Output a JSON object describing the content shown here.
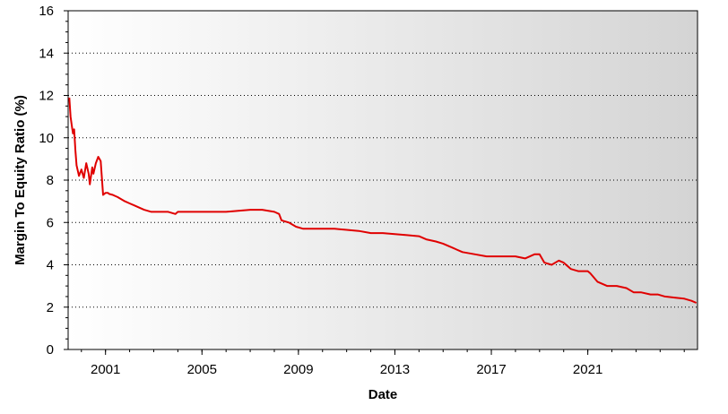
{
  "chart_data": {
    "type": "line",
    "title": "",
    "xlabel": "Date",
    "ylabel": "Margin To Equity Ratio (%)",
    "xlim": [
      1999.45,
      2025.55
    ],
    "ylim": [
      0,
      16
    ],
    "x_ticks": [
      2001,
      2005,
      2009,
      2013,
      2017,
      2021
    ],
    "y_ticks": [
      0,
      2,
      4,
      6,
      8,
      10,
      12,
      14,
      16
    ],
    "grid": "horizontal-dotted",
    "legend": "none",
    "colors": {
      "line": "#e00000",
      "background_left": "#ffffff",
      "background_right": "#d4d4d4",
      "grid": "#000000"
    },
    "series": [
      {
        "x": [
          1999.5,
          1999.55,
          1999.6,
          1999.65,
          1999.7,
          1999.75,
          1999.8,
          1999.9,
          2000.0,
          2000.1,
          2000.2,
          2000.3,
          2000.35,
          2000.45,
          2000.5,
          2000.6,
          2000.7,
          2000.8,
          2000.9,
          2001.0,
          2001.1,
          2001.15,
          2001.3,
          2001.5,
          2001.8,
          2002.0,
          2002.2,
          2002.4,
          2002.6,
          2002.9,
          2003.2,
          2003.6,
          2003.9,
          2004.0,
          2004.5,
          2005.0,
          2005.5,
          2006.0,
          2006.5,
          2007.0,
          2007.5,
          2008.0,
          2008.2,
          2008.3,
          2008.6,
          2008.9,
          2009.2,
          2009.6,
          2010.0,
          2010.5,
          2011.0,
          2011.5,
          2012.0,
          2012.5,
          2013.0,
          2013.5,
          2014.0,
          2014.3,
          2014.7,
          2015.0,
          2015.4,
          2015.8,
          2016.3,
          2016.8,
          2017.0,
          2017.5,
          2018.0,
          2018.4,
          2018.8,
          2019.0,
          2019.2,
          2019.5,
          2019.8,
          2020.0,
          2020.3,
          2020.6,
          2021.0,
          2021.1,
          2021.4,
          2021.8,
          2022.2,
          2022.6,
          2022.9,
          2023.2,
          2023.6,
          2023.9,
          2024.2,
          2024.6,
          2025.0,
          2025.3,
          2025.5
        ],
        "y": [
          11.9,
          11.0,
          10.6,
          10.2,
          10.4,
          9.4,
          8.7,
          8.2,
          8.5,
          8.1,
          8.8,
          8.3,
          7.8,
          8.6,
          8.3,
          8.8,
          9.1,
          8.9,
          7.3,
          7.4,
          7.4,
          7.35,
          7.3,
          7.2,
          7.0,
          6.9,
          6.8,
          6.7,
          6.6,
          6.5,
          6.5,
          6.5,
          6.4,
          6.5,
          6.5,
          6.5,
          6.5,
          6.5,
          6.55,
          6.6,
          6.6,
          6.5,
          6.4,
          6.1,
          6.0,
          5.8,
          5.7,
          5.7,
          5.7,
          5.7,
          5.65,
          5.6,
          5.5,
          5.5,
          5.45,
          5.4,
          5.35,
          5.2,
          5.1,
          5.0,
          4.8,
          4.6,
          4.5,
          4.4,
          4.4,
          4.4,
          4.4,
          4.3,
          4.5,
          4.5,
          4.1,
          4.0,
          4.2,
          4.1,
          3.8,
          3.7,
          3.7,
          3.6,
          3.2,
          3.0,
          3.0,
          2.9,
          2.7,
          2.7,
          2.6,
          2.6,
          2.5,
          2.45,
          2.4,
          2.3,
          2.2
        ]
      }
    ]
  }
}
